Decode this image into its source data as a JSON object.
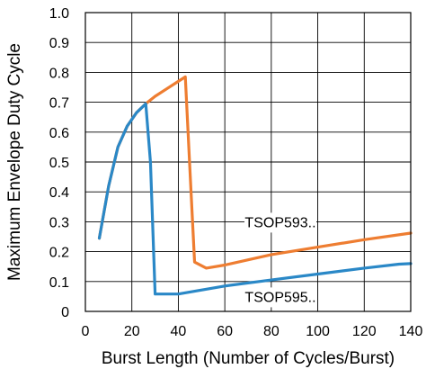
{
  "chart_data": {
    "type": "line",
    "title": "",
    "xlabel": "Burst Length (Number of Cycles/Burst)",
    "ylabel": "Maximum Envelope Duty Cycle",
    "xlim": [
      0,
      140
    ],
    "ylim": [
      0,
      1.0
    ],
    "x_ticks": [
      "0",
      "20",
      "40",
      "60",
      "80",
      "100",
      "120",
      "140"
    ],
    "y_ticks": [
      "0",
      "0.1",
      "0.2",
      "0.3",
      "0.4",
      "0.5",
      "0.6",
      "0.7",
      "0.8",
      "0.9",
      "1.0"
    ],
    "grid": true,
    "series": [
      {
        "name": "TSOP593..",
        "color": "#EE7D31",
        "points": [
          [
            6,
            0.245
          ],
          [
            10,
            0.42
          ],
          [
            14,
            0.55
          ],
          [
            18,
            0.62
          ],
          [
            22,
            0.665
          ],
          [
            26,
            0.695
          ],
          [
            30,
            0.72
          ],
          [
            35,
            0.745
          ],
          [
            40,
            0.77
          ],
          [
            43,
            0.785
          ],
          [
            45,
            0.47
          ],
          [
            47,
            0.165
          ],
          [
            52,
            0.145
          ],
          [
            60,
            0.155
          ],
          [
            80,
            0.19
          ],
          [
            100,
            0.215
          ],
          [
            120,
            0.24
          ],
          [
            140,
            0.262
          ]
        ]
      },
      {
        "name": "TSOP595..",
        "color": "#2A88C7",
        "points": [
          [
            6,
            0.245
          ],
          [
            10,
            0.42
          ],
          [
            14,
            0.55
          ],
          [
            18,
            0.62
          ],
          [
            22,
            0.665
          ],
          [
            26,
            0.695
          ],
          [
            28,
            0.5
          ],
          [
            30,
            0.058
          ],
          [
            40,
            0.058
          ],
          [
            60,
            0.085
          ],
          [
            80,
            0.105
          ],
          [
            100,
            0.125
          ],
          [
            120,
            0.145
          ],
          [
            135,
            0.158
          ],
          [
            140,
            0.16
          ]
        ]
      }
    ]
  }
}
